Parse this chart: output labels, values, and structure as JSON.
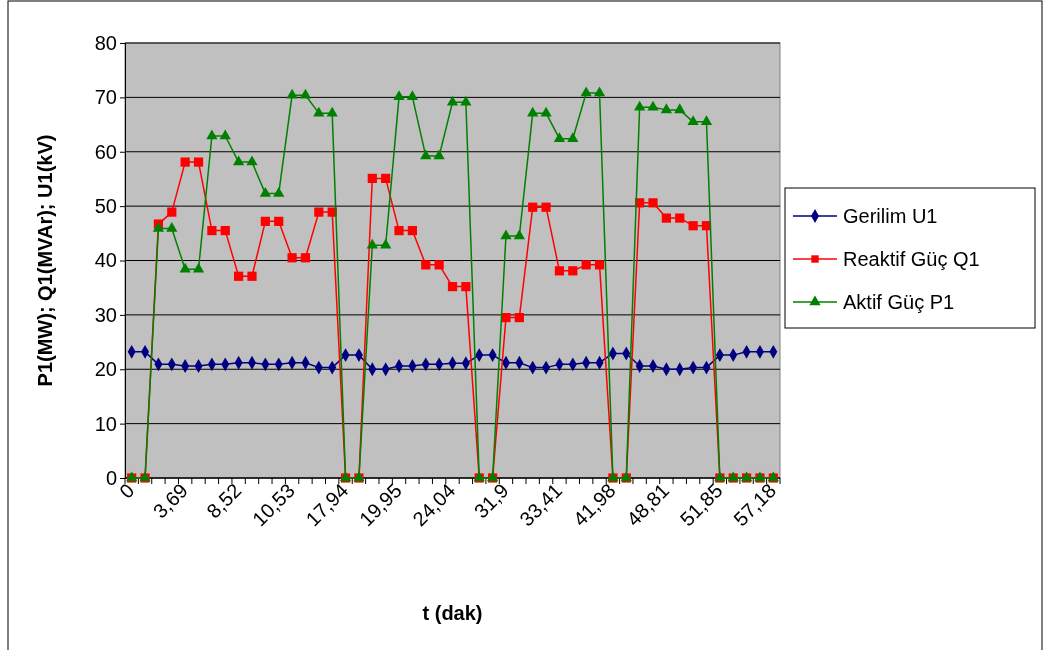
{
  "chart_data": {
    "type": "line",
    "xlabel": "t (dak)",
    "ylabel": "P1(MW); Q1(MVAr); U1(kV)",
    "categories": [
      "0",
      null,
      null,
      null,
      "3,69",
      null,
      null,
      null,
      "8,52",
      null,
      null,
      null,
      "10,53",
      null,
      null,
      null,
      "17,94",
      null,
      null,
      null,
      "19,95",
      null,
      null,
      null,
      "24,04",
      null,
      null,
      null,
      "31,9",
      null,
      null,
      null,
      "33,41",
      null,
      null,
      null,
      "41,98",
      null,
      null,
      null,
      "48,81",
      null,
      null,
      null,
      "51,85",
      null,
      null,
      null,
      "57,18"
    ],
    "series": [
      {
        "name": "Gerilim U1",
        "color": "#000080",
        "marker": "diamond",
        "values": [
          23.2,
          23.2,
          20.9,
          20.9,
          20.6,
          20.6,
          20.9,
          20.9,
          21.2,
          21.2,
          20.9,
          20.9,
          21.2,
          21.2,
          20.3,
          20.3,
          22.6,
          22.6,
          20.0,
          20.0,
          20.6,
          20.6,
          20.9,
          20.9,
          21.1,
          21.1,
          22.6,
          22.6,
          21.2,
          21.2,
          20.3,
          20.3,
          20.9,
          20.9,
          21.2,
          21.2,
          22.9,
          22.9,
          20.6,
          20.6,
          20.0,
          20.0,
          20.3,
          20.3,
          22.6,
          22.6,
          23.2,
          23.2,
          23.2
        ]
      },
      {
        "name": "Reaktif Güç Q1",
        "color": "#ff0000",
        "marker": "square",
        "values": [
          0,
          0,
          46.7,
          48.9,
          58.1,
          58.1,
          45.5,
          45.5,
          37.1,
          37.1,
          47.2,
          47.2,
          40.5,
          40.5,
          48.9,
          48.9,
          0,
          0,
          55.1,
          55.1,
          45.5,
          45.5,
          39.2,
          39.2,
          35.2,
          35.2,
          0,
          0,
          29.5,
          29.5,
          49.8,
          49.8,
          38.1,
          38.1,
          39.2,
          39.2,
          0,
          0,
          50.6,
          50.6,
          47.8,
          47.8,
          46.4,
          46.4,
          0,
          0,
          0,
          0,
          0
        ]
      },
      {
        "name": "Aktif Güç P1",
        "color": "#008000",
        "marker": "triangle",
        "values": [
          0,
          0,
          45.9,
          45.9,
          38.4,
          38.4,
          62.9,
          62.9,
          58.1,
          58.1,
          52.3,
          52.3,
          70.4,
          70.4,
          67.1,
          67.1,
          0,
          0,
          42.8,
          42.8,
          70.1,
          70.1,
          59.2,
          59.2,
          69.1,
          69.1,
          0,
          0,
          44.5,
          44.5,
          67.1,
          67.1,
          62.4,
          62.4,
          70.8,
          70.8,
          0,
          0,
          68.2,
          68.2,
          67.7,
          67.7,
          65.5,
          65.5,
          0,
          0,
          0,
          0,
          0
        ]
      }
    ],
    "ylim": [
      0,
      80
    ],
    "yticks": [
      0,
      10,
      20,
      30,
      40,
      50,
      60,
      70,
      80
    ],
    "grid": "y",
    "legend": "right"
  }
}
